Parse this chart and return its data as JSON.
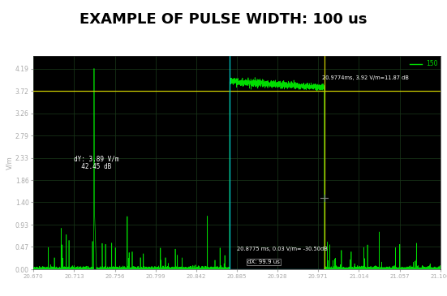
{
  "title": "EXAMPLE OF PULSE WIDTH: 100 us",
  "title_fontsize": 13,
  "title_fontweight": "bold",
  "background_color": "#000000",
  "figure_bg": "#ffffff",
  "grid_color": "#1a3a1a",
  "signal_color": "#00dd00",
  "cursor_color_yellow": "#cccc00",
  "cursor_color_cyan": "#00cccc",
  "ylabel": "V/m",
  "ylim": [
    0.0,
    4.45
  ],
  "yticks": [
    0.0,
    0.47,
    0.93,
    1.4,
    1.86,
    2.33,
    2.79,
    3.26,
    3.72,
    4.19
  ],
  "xlim_start": 20.67,
  "xlim_end": 21.1,
  "noise_floor": 0.03,
  "pulse_start_x": 20.7335,
  "pulse_height": 4.19,
  "flat_top_start_x": 20.8775,
  "flat_top_end_x": 20.9774,
  "flat_top_height": 3.92,
  "cursor1_x": 20.8775,
  "cursor2_x": 20.9774,
  "yellow_hline_y": 3.72,
  "cyan_hline_y": 0.0,
  "ann_dy_text": "dY: 3.89 V/m\n  42.45 dB",
  "ann_bottom_text": "20.8775 ms, 0.03 V/m= -30.50dB",
  "ann_dx_text": "dX: 99.9 us",
  "ann_top_text": "20.9774ms, 3.92 V/m=11.87 dB",
  "legend_text": "150",
  "crosshair_x": 20.9774,
  "crosshair_y": 1.49
}
